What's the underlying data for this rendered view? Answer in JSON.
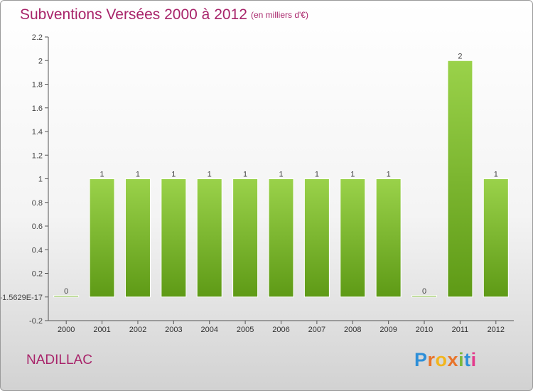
{
  "title": "Subventions Versées 2000 à 2012",
  "subtitle": "(en milliers d'€)",
  "commune": "NADILLAC",
  "logo": {
    "letters": [
      "P",
      "r",
      "o",
      "x",
      "i",
      "t",
      "i"
    ],
    "colors": [
      "#2e8fd8",
      "#e8742a",
      "#f2b51c",
      "#e8742a",
      "#7db83a",
      "#2e8fd8",
      "#e33b8c"
    ]
  },
  "colors": {
    "title": "#a8246a",
    "bar_light": "#9ad24a",
    "bar_dark": "#5e9a16",
    "axis": "#555555"
  },
  "chart_data": {
    "type": "bar",
    "categories": [
      "2000",
      "2001",
      "2002",
      "2003",
      "2004",
      "2005",
      "2006",
      "2007",
      "2008",
      "2009",
      "2010",
      "2011",
      "2012"
    ],
    "values": [
      0,
      1,
      1,
      1,
      1,
      1,
      1,
      1,
      1,
      1,
      0,
      2,
      1
    ],
    "data_labels": [
      "0",
      "1",
      "1",
      "1",
      "1",
      "1",
      "1",
      "1",
      "1",
      "1",
      "0",
      "2",
      "1"
    ],
    "ylim": [
      -0.2,
      2.2
    ],
    "yticks": [
      -0.2,
      0,
      0.2,
      0.4,
      0.6,
      0.8,
      1,
      1.2,
      1.4,
      1.6,
      1.8,
      2,
      2.2
    ],
    "ytick_labels": [
      "-0.2",
      "-1.5629E-17",
      "0.2",
      "0.4",
      "0.6",
      "0.8",
      "1",
      "1.2",
      "1.4",
      "1.6",
      "1.8",
      "2",
      "2.2"
    ],
    "title": "Subventions Versées 2000 à 2012",
    "subtitle": "(en milliers d'€)",
    "xlabel": "",
    "ylabel": "",
    "grid": false,
    "legend": "none"
  }
}
